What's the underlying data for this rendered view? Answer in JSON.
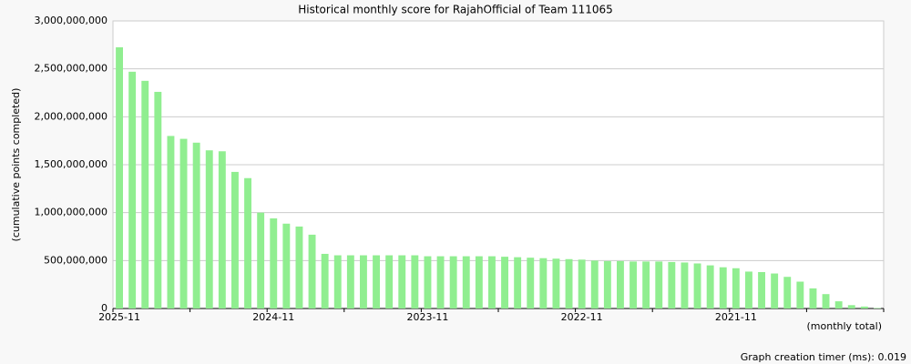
{
  "chart_data": {
    "type": "bar",
    "title": "Historical monthly score for RajahOfficial of Team 111065",
    "y_label": "(cumulative points completed)",
    "x_label": "(monthly total)",
    "footer": "Graph creation timer (ms): 0.019",
    "color": "#90ee90",
    "grid": true,
    "categories": [
      "2025-11",
      null,
      null,
      null,
      null,
      null,
      null,
      null,
      null,
      null,
      null,
      null,
      "2024-11",
      null,
      null,
      null,
      null,
      null,
      null,
      null,
      null,
      null,
      null,
      null,
      "2023-11",
      null,
      null,
      null,
      null,
      null,
      null,
      null,
      null,
      null,
      null,
      null,
      "2022-11",
      null,
      null,
      null,
      null,
      null,
      null,
      null,
      null,
      null,
      null,
      null,
      "2021-11",
      null,
      null,
      null,
      null,
      null,
      null,
      null,
      null,
      null,
      null,
      null
    ],
    "values": [
      2725000000,
      2470000000,
      2375000000,
      2260000000,
      1800000000,
      1770000000,
      1730000000,
      1650000000,
      1640000000,
      1425000000,
      1360000000,
      1000000000,
      940000000,
      885000000,
      855000000,
      770000000,
      570000000,
      555000000,
      555000000,
      555000000,
      555000000,
      555000000,
      555000000,
      555000000,
      545000000,
      545000000,
      545000000,
      545000000,
      545000000,
      545000000,
      540000000,
      535000000,
      530000000,
      525000000,
      520000000,
      515000000,
      510000000,
      500000000,
      495000000,
      495000000,
      490000000,
      490000000,
      490000000,
      485000000,
      480000000,
      470000000,
      450000000,
      430000000,
      420000000,
      385000000,
      380000000,
      365000000,
      330000000,
      280000000,
      210000000,
      150000000,
      75000000,
      35000000,
      20000000,
      5000000
    ],
    "ylim": [
      0,
      3000000000
    ],
    "yticks": [
      0,
      {
        "value": 500000000,
        "label": "500,000,000"
      },
      {
        "value": 1000000000,
        "label": "1,000,000,000"
      },
      {
        "value": 1500000000,
        "label": "1,500,000,000"
      },
      {
        "value": 2000000000,
        "label": "2,000,000,000"
      },
      {
        "value": 2500000000,
        "label": "2,500,000,000"
      },
      {
        "value": 3000000000,
        "label": "3,000,000,000"
      }
    ]
  }
}
